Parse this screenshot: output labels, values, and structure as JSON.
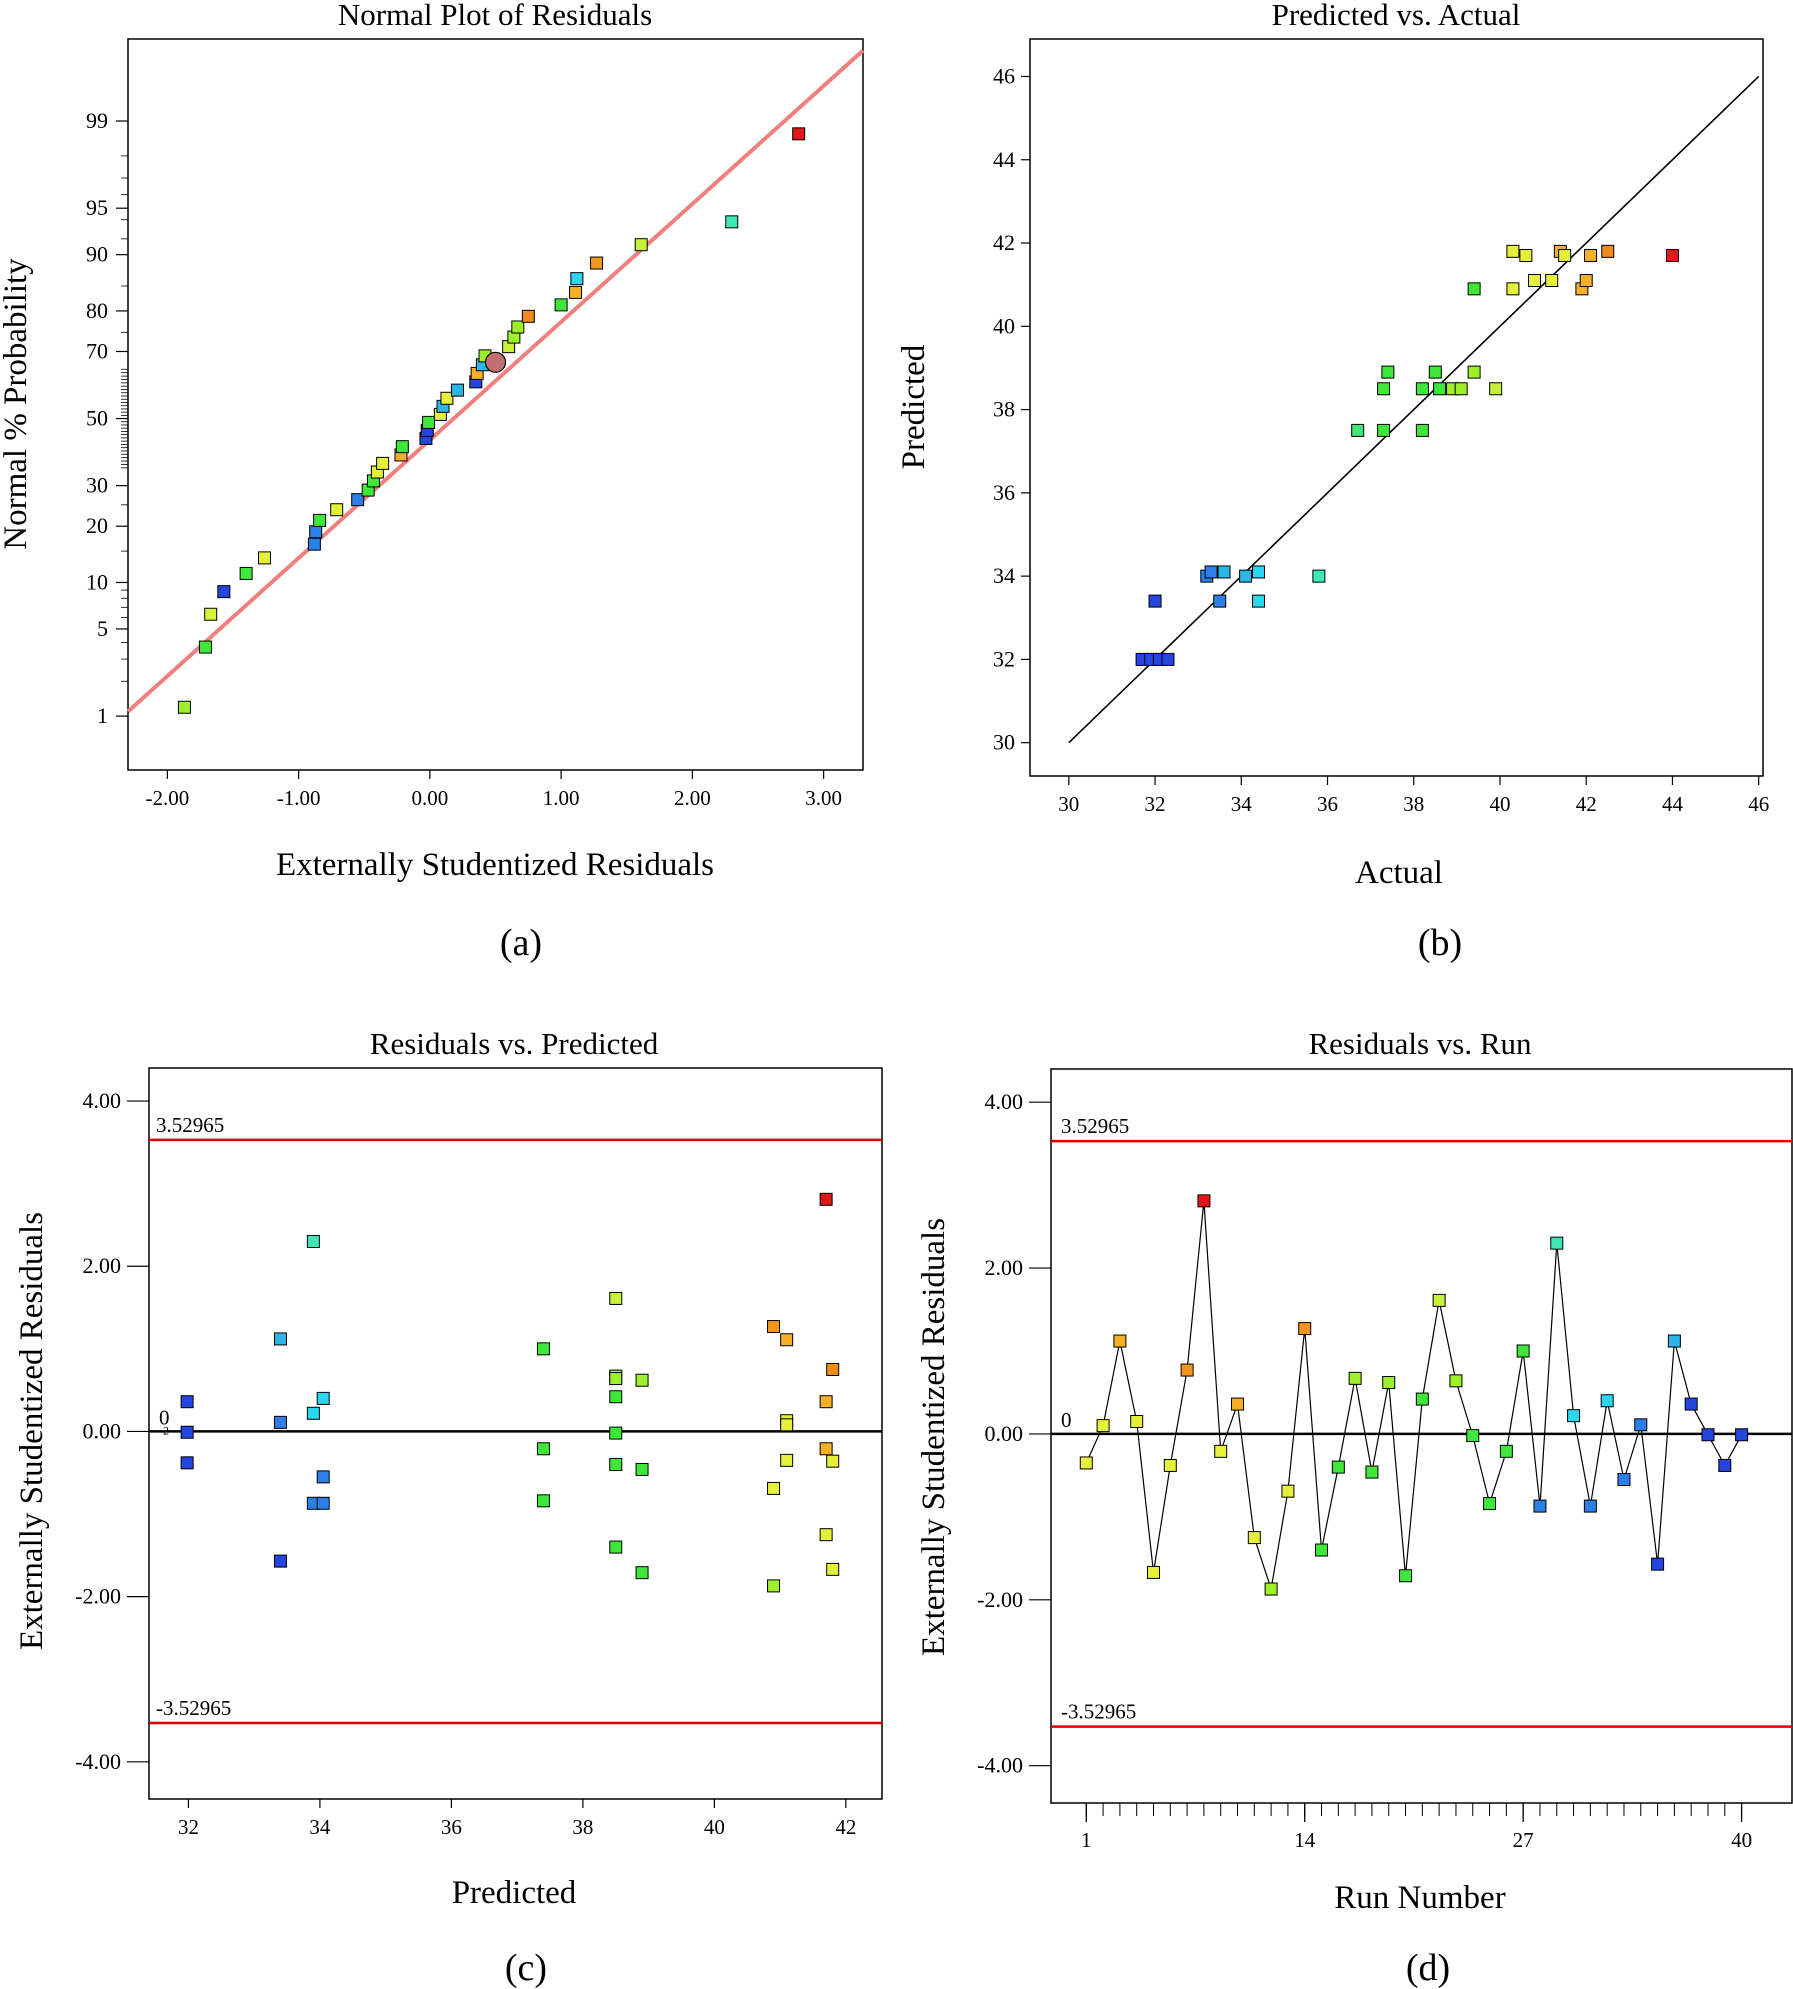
{
  "colors": {
    "fit_line_a": "#f08080",
    "limit_line": "#e00000",
    "zero_line": "#000000",
    "point_stroke": "#000000",
    "highlight_point": "#c07070"
  },
  "chart_data": [
    {
      "id": "a",
      "type": "scatter",
      "caption": "(a)",
      "title": "Normal Plot of Residuals",
      "xlabel": "Externally Studentized Residuals",
      "ylabel": "Normal % Probability",
      "xlim": [
        -2.3,
        3.3
      ],
      "y_scale": "normal-probability",
      "ylim_percent": [
        0.3,
        99.85
      ],
      "xticks": [
        -2,
        -1,
        0,
        1,
        2,
        3
      ],
      "xtick_labels": [
        "-2.00",
        "-1.00",
        "0.00",
        "1.00",
        "2.00",
        "3.00"
      ],
      "yticks": [
        1,
        5,
        10,
        20,
        30,
        50,
        70,
        80,
        90,
        95,
        99
      ],
      "ytick_labels": [
        "1",
        "5",
        "10",
        "20",
        "30",
        "50",
        "70",
        "80",
        "90",
        "95",
        "99"
      ],
      "fit_line": {
        "x": [
          -2.3,
          3.3
        ],
        "p": [
          1.1,
          99.8
        ]
      },
      "highlight_point": {
        "x": 0.5,
        "p": 67
      },
      "points": [
        {
          "x": -1.87,
          "p": 1.2,
          "c": "#9ef02a"
        },
        {
          "x": -1.71,
          "p": 3.7,
          "c": "#3fe73a"
        },
        {
          "x": -1.67,
          "p": 6.3,
          "c": "#d6f53a"
        },
        {
          "x": -1.57,
          "p": 8.8,
          "c": "#2545e0"
        },
        {
          "x": -1.4,
          "p": 11.3,
          "c": "#3fe73a"
        },
        {
          "x": -1.26,
          "p": 13.8,
          "c": "#e6ef3a"
        },
        {
          "x": -0.88,
          "p": 16.3,
          "c": "#2b7fe6"
        },
        {
          "x": -0.87,
          "p": 18.8,
          "c": "#2b7fe6"
        },
        {
          "x": -0.84,
          "p": 21.3,
          "c": "#3fe73a"
        },
        {
          "x": -0.71,
          "p": 23.8,
          "c": "#e6ef3a"
        },
        {
          "x": -0.55,
          "p": 26.3,
          "c": "#2b7fe6"
        },
        {
          "x": -0.47,
          "p": 28.8,
          "c": "#3fe73a"
        },
        {
          "x": -0.43,
          "p": 31.3,
          "c": "#3fe73a"
        },
        {
          "x": -0.4,
          "p": 33.8,
          "c": "#e6ef3a"
        },
        {
          "x": -0.36,
          "p": 36.3,
          "c": "#e6ef3a"
        },
        {
          "x": -0.22,
          "p": 38.8,
          "c": "#f5b02a"
        },
        {
          "x": -0.21,
          "p": 41.3,
          "c": "#3fe73a"
        },
        {
          "x": -0.03,
          "p": 43.8,
          "c": "#2545e0"
        },
        {
          "x": -0.02,
          "p": 46.3,
          "c": "#2545e0"
        },
        {
          "x": -0.01,
          "p": 48.8,
          "c": "#3fe73a"
        },
        {
          "x": 0.08,
          "p": 51.3,
          "c": "#e6ef3a"
        },
        {
          "x": 0.1,
          "p": 53.8,
          "c": "#2bb6e6"
        },
        {
          "x": 0.13,
          "p": 56.3,
          "c": "#e6ef3a"
        },
        {
          "x": 0.21,
          "p": 58.8,
          "c": "#2bb6e6"
        },
        {
          "x": 0.35,
          "p": 61.3,
          "c": "#2545e0"
        },
        {
          "x": 0.36,
          "p": 63.8,
          "c": "#f5b02a"
        },
        {
          "x": 0.4,
          "p": 66.3,
          "c": "#2bb6e6"
        },
        {
          "x": 0.42,
          "p": 68.8,
          "c": "#9ef02a"
        },
        {
          "x": 0.6,
          "p": 71.3,
          "c": "#c6f03a"
        },
        {
          "x": 0.64,
          "p": 73.8,
          "c": "#9ef02a"
        },
        {
          "x": 0.67,
          "p": 76.3,
          "c": "#9ef02a"
        },
        {
          "x": 0.75,
          "p": 78.8,
          "c": "#f08a1c"
        },
        {
          "x": 1.0,
          "p": 81.3,
          "c": "#3fe73a"
        },
        {
          "x": 1.11,
          "p": 83.8,
          "c": "#f5b02a"
        },
        {
          "x": 1.12,
          "p": 86.3,
          "c": "#2bd6ef"
        },
        {
          "x": 1.27,
          "p": 88.8,
          "c": "#f5961c"
        },
        {
          "x": 1.61,
          "p": 91.3,
          "c": "#c6f03a"
        },
        {
          "x": 2.3,
          "p": 93.8,
          "c": "#3fe7b6"
        },
        {
          "x": 2.81,
          "p": 98.7,
          "c": "#e01818"
        }
      ]
    },
    {
      "id": "b",
      "type": "scatter",
      "caption": "(b)",
      "title": "Predicted vs. Actual",
      "xlabel": "Actual",
      "ylabel": "Predicted",
      "xlim": [
        29.1,
        46.1
      ],
      "ylim": [
        29.2,
        46.9
      ],
      "xticks": [
        30,
        32,
        34,
        36,
        38,
        40,
        42,
        44,
        46
      ],
      "xtick_labels": [
        "30",
        "32",
        "34",
        "36",
        "38",
        "40",
        "42",
        "44",
        "46"
      ],
      "yticks": [
        30,
        32,
        34,
        36,
        38,
        40,
        42,
        44,
        46
      ],
      "ytick_labels": [
        "30",
        "32",
        "34",
        "36",
        "38",
        "40",
        "42",
        "44",
        "46"
      ],
      "diagonal": [
        30,
        46
      ],
      "points": [
        {
          "x": 31.7,
          "y": 32.0,
          "c": "#2545e0"
        },
        {
          "x": 31.9,
          "y": 32.0,
          "c": "#2545e0"
        },
        {
          "x": 32.0,
          "y": 33.4,
          "c": "#2545e0"
        },
        {
          "x": 32.1,
          "y": 32.0,
          "c": "#2545e0"
        },
        {
          "x": 32.3,
          "y": 32.0,
          "c": "#2545e0"
        },
        {
          "x": 33.2,
          "y": 34.0,
          "c": "#2b7fe6"
        },
        {
          "x": 33.3,
          "y": 34.1,
          "c": "#2b7fe6"
        },
        {
          "x": 33.5,
          "y": 33.4,
          "c": "#2b7fe6"
        },
        {
          "x": 33.6,
          "y": 34.1,
          "c": "#2bb6e6"
        },
        {
          "x": 34.1,
          "y": 34.0,
          "c": "#2bb6e6"
        },
        {
          "x": 34.4,
          "y": 33.4,
          "c": "#2bd6ef"
        },
        {
          "x": 34.4,
          "y": 34.1,
          "c": "#2bd6ef"
        },
        {
          "x": 35.8,
          "y": 34.0,
          "c": "#3fe7b6"
        },
        {
          "x": 36.7,
          "y": 37.5,
          "c": "#3fe77a"
        },
        {
          "x": 37.3,
          "y": 37.5,
          "c": "#3fe73a"
        },
        {
          "x": 37.3,
          "y": 38.5,
          "c": "#3fe73a"
        },
        {
          "x": 37.4,
          "y": 38.9,
          "c": "#3fe73a"
        },
        {
          "x": 38.2,
          "y": 37.5,
          "c": "#3fe73a"
        },
        {
          "x": 38.2,
          "y": 38.5,
          "c": "#3fe73a"
        },
        {
          "x": 38.5,
          "y": 38.9,
          "c": "#3fe73a"
        },
        {
          "x": 38.6,
          "y": 38.5,
          "c": "#3fe73a"
        },
        {
          "x": 38.9,
          "y": 38.5,
          "c": "#9ef02a"
        },
        {
          "x": 39.1,
          "y": 38.5,
          "c": "#9ef02a"
        },
        {
          "x": 39.4,
          "y": 40.9,
          "c": "#3fe73a"
        },
        {
          "x": 39.4,
          "y": 38.9,
          "c": "#9ef02a"
        },
        {
          "x": 39.9,
          "y": 38.5,
          "c": "#c6f03a"
        },
        {
          "x": 40.3,
          "y": 40.9,
          "c": "#e6ef3a"
        },
        {
          "x": 40.3,
          "y": 41.8,
          "c": "#e6ef3a"
        },
        {
          "x": 40.6,
          "y": 41.7,
          "c": "#e6ef3a"
        },
        {
          "x": 40.8,
          "y": 41.1,
          "c": "#e6ef3a"
        },
        {
          "x": 41.2,
          "y": 41.1,
          "c": "#e6ef3a"
        },
        {
          "x": 41.4,
          "y": 41.8,
          "c": "#f5b02a"
        },
        {
          "x": 41.5,
          "y": 41.7,
          "c": "#e6ef3a"
        },
        {
          "x": 41.9,
          "y": 40.9,
          "c": "#f5b02a"
        },
        {
          "x": 42.0,
          "y": 41.1,
          "c": "#f5b02a"
        },
        {
          "x": 42.1,
          "y": 41.7,
          "c": "#f5b02a"
        },
        {
          "x": 42.5,
          "y": 41.8,
          "c": "#f08a1c"
        },
        {
          "x": 44.0,
          "y": 41.7,
          "c": "#e01818"
        }
      ]
    },
    {
      "id": "c",
      "type": "scatter",
      "caption": "(c)",
      "title": "Residuals vs. Predicted",
      "xlabel": "Predicted",
      "ylabel": "Externally Studentized Residuals",
      "xlim": [
        31.4,
        42.55
      ],
      "ylim": [
        -4.45,
        4.4
      ],
      "xticks": [
        32,
        34,
        36,
        38,
        40,
        42
      ],
      "xtick_labels": [
        "32",
        "34",
        "36",
        "38",
        "40",
        "42"
      ],
      "yticks": [
        -4,
        -2,
        0,
        2,
        4
      ],
      "ytick_labels": [
        "-4.00",
        "-2.00",
        "0.00",
        "2.00",
        "4.00"
      ],
      "upper_limit": 3.52965,
      "upper_limit_label": "3.52965",
      "lower_limit": -3.52965,
      "lower_limit_label": "-3.52965",
      "zero_label": "0",
      "zero_sublabel": "2",
      "points": [
        {
          "x": 31.98,
          "y": 0.36,
          "c": "#2545e0"
        },
        {
          "x": 31.98,
          "y": -0.01,
          "c": "#2545e0"
        },
        {
          "x": 31.98,
          "y": -0.38,
          "c": "#2545e0"
        },
        {
          "x": 33.4,
          "y": 1.12,
          "c": "#2bb6e6"
        },
        {
          "x": 33.4,
          "y": 0.11,
          "c": "#2b7fe6"
        },
        {
          "x": 33.4,
          "y": -1.57,
          "c": "#2545e0"
        },
        {
          "x": 33.9,
          "y": 2.3,
          "c": "#3fe7b6"
        },
        {
          "x": 33.9,
          "y": 0.22,
          "c": "#2bd6ef"
        },
        {
          "x": 33.9,
          "y": -0.87,
          "c": "#2b7fe6"
        },
        {
          "x": 34.05,
          "y": 0.4,
          "c": "#2bd6ef"
        },
        {
          "x": 34.05,
          "y": -0.55,
          "c": "#2b7fe6"
        },
        {
          "x": 34.05,
          "y": -0.87,
          "c": "#2b7fe6"
        },
        {
          "x": 37.4,
          "y": 1.0,
          "c": "#3fe73a"
        },
        {
          "x": 37.4,
          "y": -0.21,
          "c": "#3fe73a"
        },
        {
          "x": 37.4,
          "y": -0.84,
          "c": "#3fe73a"
        },
        {
          "x": 38.5,
          "y": 1.61,
          "c": "#c6f03a"
        },
        {
          "x": 38.5,
          "y": 0.67,
          "c": "#9ef02a"
        },
        {
          "x": 38.5,
          "y": 0.64,
          "c": "#9ef02a"
        },
        {
          "x": 38.5,
          "y": 0.42,
          "c": "#3fe73a"
        },
        {
          "x": 38.5,
          "y": -0.02,
          "c": "#3fe73a"
        },
        {
          "x": 38.5,
          "y": -0.4,
          "c": "#3fe73a"
        },
        {
          "x": 38.5,
          "y": -1.4,
          "c": "#3fe73a"
        },
        {
          "x": 38.9,
          "y": 0.62,
          "c": "#9ef02a"
        },
        {
          "x": 38.9,
          "y": -0.46,
          "c": "#3fe73a"
        },
        {
          "x": 38.9,
          "y": -1.71,
          "c": "#3fe73a"
        },
        {
          "x": 40.9,
          "y": 1.27,
          "c": "#f5961c"
        },
        {
          "x": 40.9,
          "y": -0.69,
          "c": "#e6ef3a"
        },
        {
          "x": 40.9,
          "y": -1.87,
          "c": "#9ef02a"
        },
        {
          "x": 41.1,
          "y": 1.11,
          "c": "#f5b02a"
        },
        {
          "x": 41.1,
          "y": 0.13,
          "c": "#e6ef3a"
        },
        {
          "x": 41.1,
          "y": 0.08,
          "c": "#e6ef3a"
        },
        {
          "x": 41.1,
          "y": -0.35,
          "c": "#e6ef3a"
        },
        {
          "x": 41.7,
          "y": 2.81,
          "c": "#e01818"
        },
        {
          "x": 41.7,
          "y": 0.36,
          "c": "#f5b02a"
        },
        {
          "x": 41.7,
          "y": -0.21,
          "c": "#f5b02a"
        },
        {
          "x": 41.7,
          "y": -1.25,
          "c": "#e6ef3a"
        },
        {
          "x": 41.8,
          "y": 0.75,
          "c": "#f08a1c"
        },
        {
          "x": 41.8,
          "y": -0.36,
          "c": "#e6ef3a"
        },
        {
          "x": 41.8,
          "y": -1.67,
          "c": "#e6ef3a"
        }
      ]
    },
    {
      "id": "d",
      "type": "line",
      "caption": "(d)",
      "title": "Residuals vs. Run",
      "xlabel": "Run Number",
      "ylabel": "Externally Studentized Residuals",
      "xlim": [
        -1.1,
        43.0
      ],
      "ylim": [
        -4.45,
        4.4
      ],
      "xticks": [
        1,
        14,
        27,
        40
      ],
      "xtick_labels": [
        "1",
        "14",
        "27",
        "40"
      ],
      "minor_xticks_every": 1,
      "minor_xticks_range": [
        1,
        40
      ],
      "yticks": [
        -4,
        -2,
        0,
        2,
        4
      ],
      "ytick_labels": [
        "-4.00",
        "-2.00",
        "0.00",
        "2.00",
        "4.00"
      ],
      "upper_limit": 3.52965,
      "upper_limit_label": "3.52965",
      "lower_limit": -3.52965,
      "lower_limit_label": "-3.52965",
      "zero_label": "0",
      "runs": [
        1,
        2,
        3,
        4,
        5,
        6,
        7,
        8,
        9,
        10,
        11,
        12,
        13,
        14,
        15,
        16,
        17,
        18,
        19,
        20,
        21,
        22,
        23,
        24,
        25,
        26,
        27,
        28,
        29,
        30,
        31,
        32,
        33,
        34,
        35,
        36,
        37,
        38,
        39,
        40
      ],
      "values": [
        -0.35,
        0.1,
        1.12,
        0.15,
        -1.67,
        -0.38,
        0.77,
        2.81,
        -0.21,
        0.36,
        -1.25,
        -1.87,
        -0.69,
        1.27,
        -1.4,
        -0.4,
        0.67,
        -0.46,
        0.62,
        -1.71,
        0.42,
        1.61,
        0.64,
        -0.02,
        -0.84,
        -0.21,
        1.0,
        -0.87,
        2.3,
        0.22,
        -0.87,
        0.4,
        -0.55,
        0.11,
        -1.57,
        1.12,
        0.36,
        -0.01,
        -0.38,
        -0.01
      ],
      "point_colors": [
        "#e6ef3a",
        "#e6ef3a",
        "#f5b02a",
        "#e6ef3a",
        "#e6ef3a",
        "#e6ef3a",
        "#f5961c",
        "#e01818",
        "#e6ef3a",
        "#f5b02a",
        "#e6ef3a",
        "#9ef02a",
        "#e6ef3a",
        "#f5961c",
        "#3fe73a",
        "#3fe73a",
        "#9ef02a",
        "#3fe73a",
        "#9ef02a",
        "#3fe73a",
        "#3fe73a",
        "#c6f03a",
        "#9ef02a",
        "#3fe73a",
        "#3fe73a",
        "#3fe73a",
        "#3fe73a",
        "#2b7fe6",
        "#3fe7b6",
        "#2bd6ef",
        "#2b7fe6",
        "#2bd6ef",
        "#2b7fe6",
        "#2b7fe6",
        "#2545e0",
        "#2bb6e6",
        "#2545e0",
        "#2545e0",
        "#2545e0",
        "#2545e0"
      ]
    }
  ]
}
